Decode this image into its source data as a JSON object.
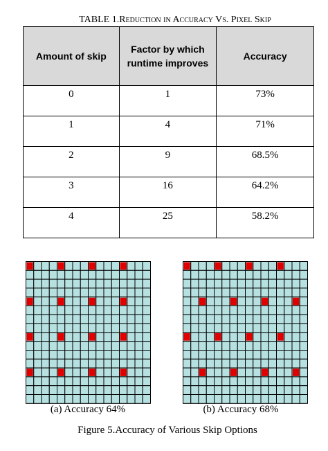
{
  "table": {
    "caption": "TABLE 1.Reduction in Accuracy Vs. Pixel Skip",
    "header": [
      "Amount of skip",
      "Factor by which runtime improves",
      "Accuracy"
    ],
    "rows": [
      [
        "0",
        "1",
        "73%"
      ],
      [
        "1",
        "4",
        "71%"
      ],
      [
        "2",
        "9",
        "68.5%"
      ],
      [
        "3",
        "16",
        "64.2%"
      ],
      [
        "4",
        "25",
        "58.2%"
      ]
    ]
  },
  "figure": {
    "subcaptions": [
      "(a)  Accuracy 64%",
      "(b) Accuracy 68%"
    ],
    "caption": "Figure 5.Accuracy of Various Skip Options"
  }
}
